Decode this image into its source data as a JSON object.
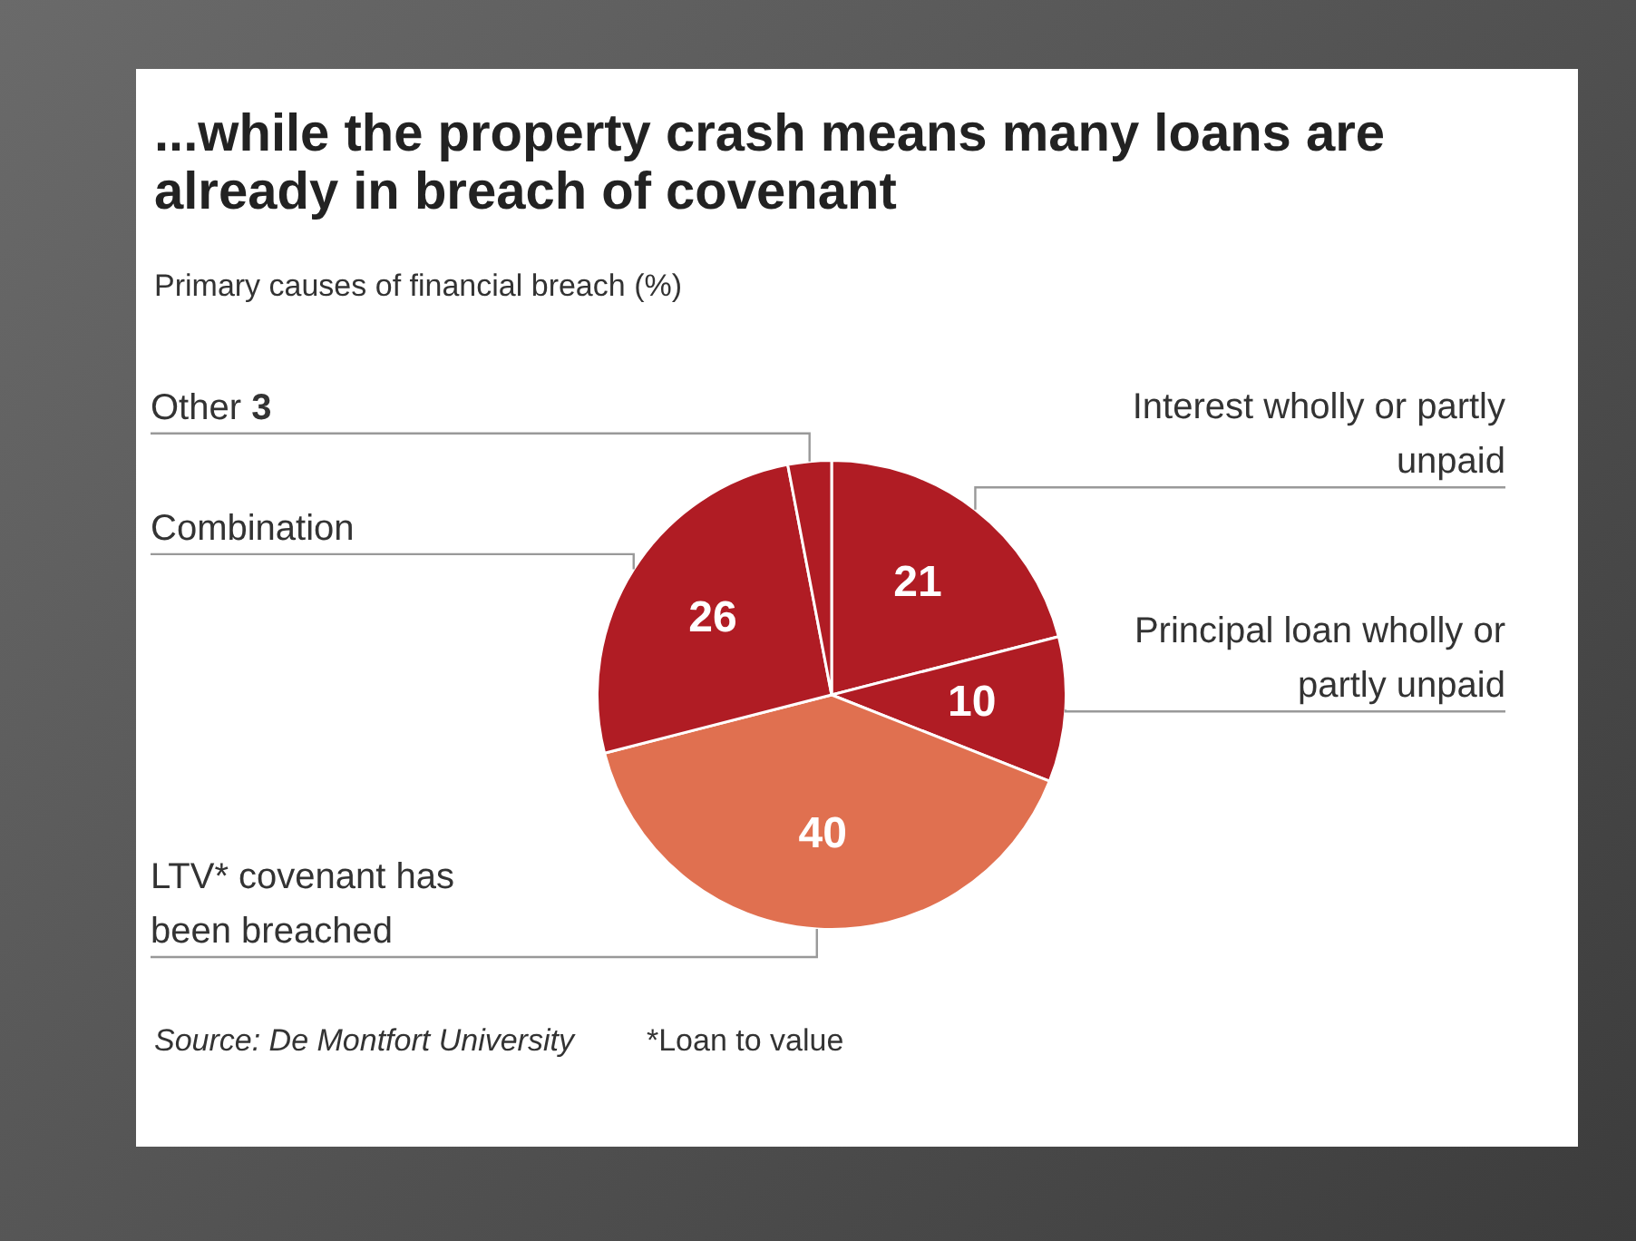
{
  "chart_data": {
    "type": "pie",
    "title": "...while the property crash means many loans are already in breach of covenant",
    "subtitle": "Primary causes of financial breach (%)",
    "categories": [
      "Interest wholly or partly unpaid",
      "Principal loan wholly or partly unpaid",
      "LTV* covenant has been breached",
      "Combination",
      "Other"
    ],
    "values": [
      21,
      10,
      40,
      26,
      3
    ],
    "colors": [
      "#b01c24",
      "#b01c24",
      "#e07050",
      "#b01c24",
      "#b01c24"
    ],
    "data_labels": true,
    "legend": false,
    "annotations": [
      "Source: De Montfort University",
      "*Loan to value"
    ]
  }
}
